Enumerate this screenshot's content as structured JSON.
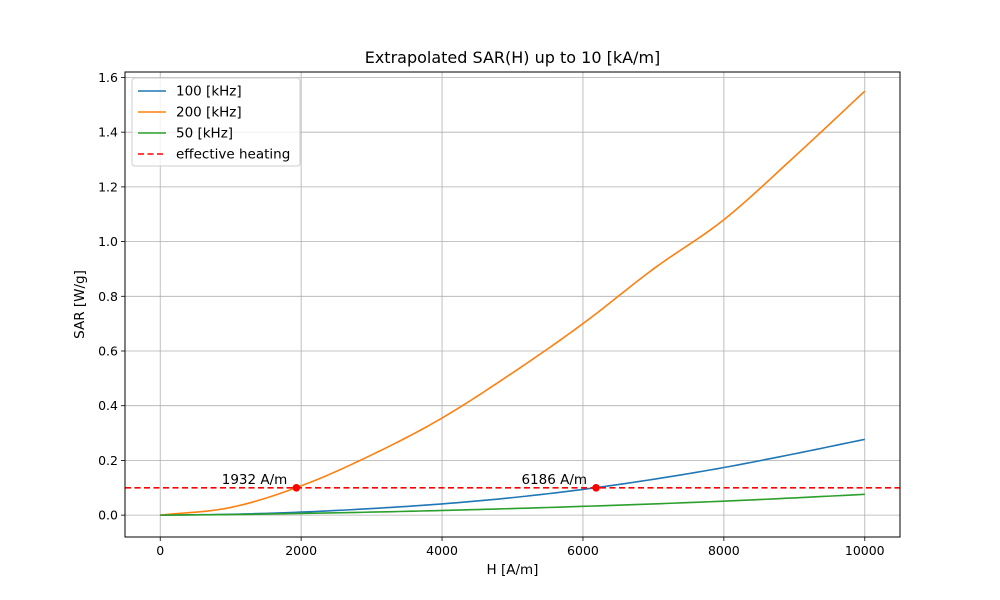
{
  "chart_data": {
    "type": "line",
    "title": "Extrapolated SAR(H) up to 10 [kA/m]",
    "xlabel": "H [A/m]",
    "ylabel": "SAR [W/g]",
    "xlim": [
      -500,
      10500
    ],
    "ylim": [
      -0.08,
      1.62
    ],
    "x_ticks": [
      0,
      2000,
      4000,
      6000,
      8000,
      10000
    ],
    "x_tick_labels": [
      "0",
      "2000",
      "4000",
      "6000",
      "8000",
      "10000"
    ],
    "y_ticks": [
      0.0,
      0.2,
      0.4,
      0.6,
      0.8,
      1.0,
      1.2,
      1.4,
      1.6
    ],
    "y_tick_labels": [
      "0.0",
      "0.2",
      "0.4",
      "0.6",
      "0.8",
      "1.0",
      "1.2",
      "1.4",
      "1.6"
    ],
    "grid": true,
    "legend_position": "top-left",
    "x": [
      0,
      1000,
      2000,
      3000,
      4000,
      5000,
      6000,
      7000,
      8000,
      9000,
      10000
    ],
    "series": [
      {
        "name": "100 [kHz]",
        "color": "#1f77b4",
        "style": "solid",
        "values": [
          0.0,
          0.003,
          0.011,
          0.024,
          0.041,
          0.064,
          0.094,
          0.131,
          0.174,
          0.224,
          0.277
        ]
      },
      {
        "name": "200 [kHz]",
        "color": "#ff7f0e",
        "style": "solid",
        "values": [
          0.0,
          0.028,
          0.107,
          0.22,
          0.355,
          0.52,
          0.7,
          0.9,
          1.08,
          1.31,
          1.55
        ]
      },
      {
        "name": "50 [kHz]",
        "color": "#2ca02c",
        "style": "solid",
        "values": [
          0.0,
          0.002,
          0.006,
          0.011,
          0.017,
          0.024,
          0.032,
          0.041,
          0.051,
          0.063,
          0.076
        ]
      }
    ],
    "reference_line": {
      "name": "effective heating",
      "y": 0.1,
      "color": "#ff0000",
      "style": "dashed"
    },
    "annotations": [
      {
        "x": 1932,
        "y": 0.1,
        "label": "1932 A/m",
        "color": "#ff0000"
      },
      {
        "x": 6186,
        "y": 0.1,
        "label": "6186 A/m",
        "color": "#ff0000"
      }
    ]
  }
}
